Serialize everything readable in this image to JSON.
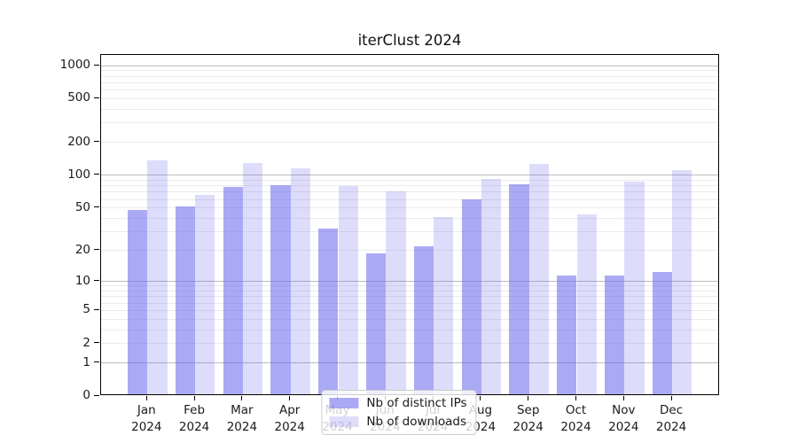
{
  "chart_data": {
    "type": "bar",
    "title": "iterClust 2024",
    "categories": [
      "Jan",
      "Feb",
      "Mar",
      "Apr",
      "May",
      "Jun",
      "Jul",
      "Aug",
      "Sep",
      "Oct",
      "Nov",
      "Dec"
    ],
    "year_suffix": "2024",
    "series": [
      {
        "name": "Nb of distinct IPs",
        "color": "rgba(100,100,235,0.55)",
        "values": [
          46,
          50,
          75,
          78,
          31,
          18,
          21,
          58,
          79,
          11,
          11,
          12
        ]
      },
      {
        "name": "Nb of downloads",
        "color": "rgba(100,100,235,0.22)",
        "values": [
          132,
          64,
          125,
          112,
          77,
          69,
          40,
          90,
          123,
          42,
          84,
          108
        ]
      }
    ],
    "xlabel": "",
    "ylabel": "",
    "y_ticks": [
      0,
      1,
      2,
      5,
      10,
      20,
      50,
      100,
      200,
      500,
      1000
    ],
    "scale": "log10(1+v)",
    "ylim": [
      0,
      1250
    ],
    "grid": "horizontal major and minor gridlines",
    "legend_position": "lower center",
    "colors": {
      "bar_dark": "rgba(100,100,235,0.55)",
      "bar_light": "rgba(100,100,235,0.22)",
      "grid_major": "#bcbcbc",
      "grid_minor": "#ebebeb",
      "axis": "#000000",
      "text": "#1a1a1a"
    }
  }
}
